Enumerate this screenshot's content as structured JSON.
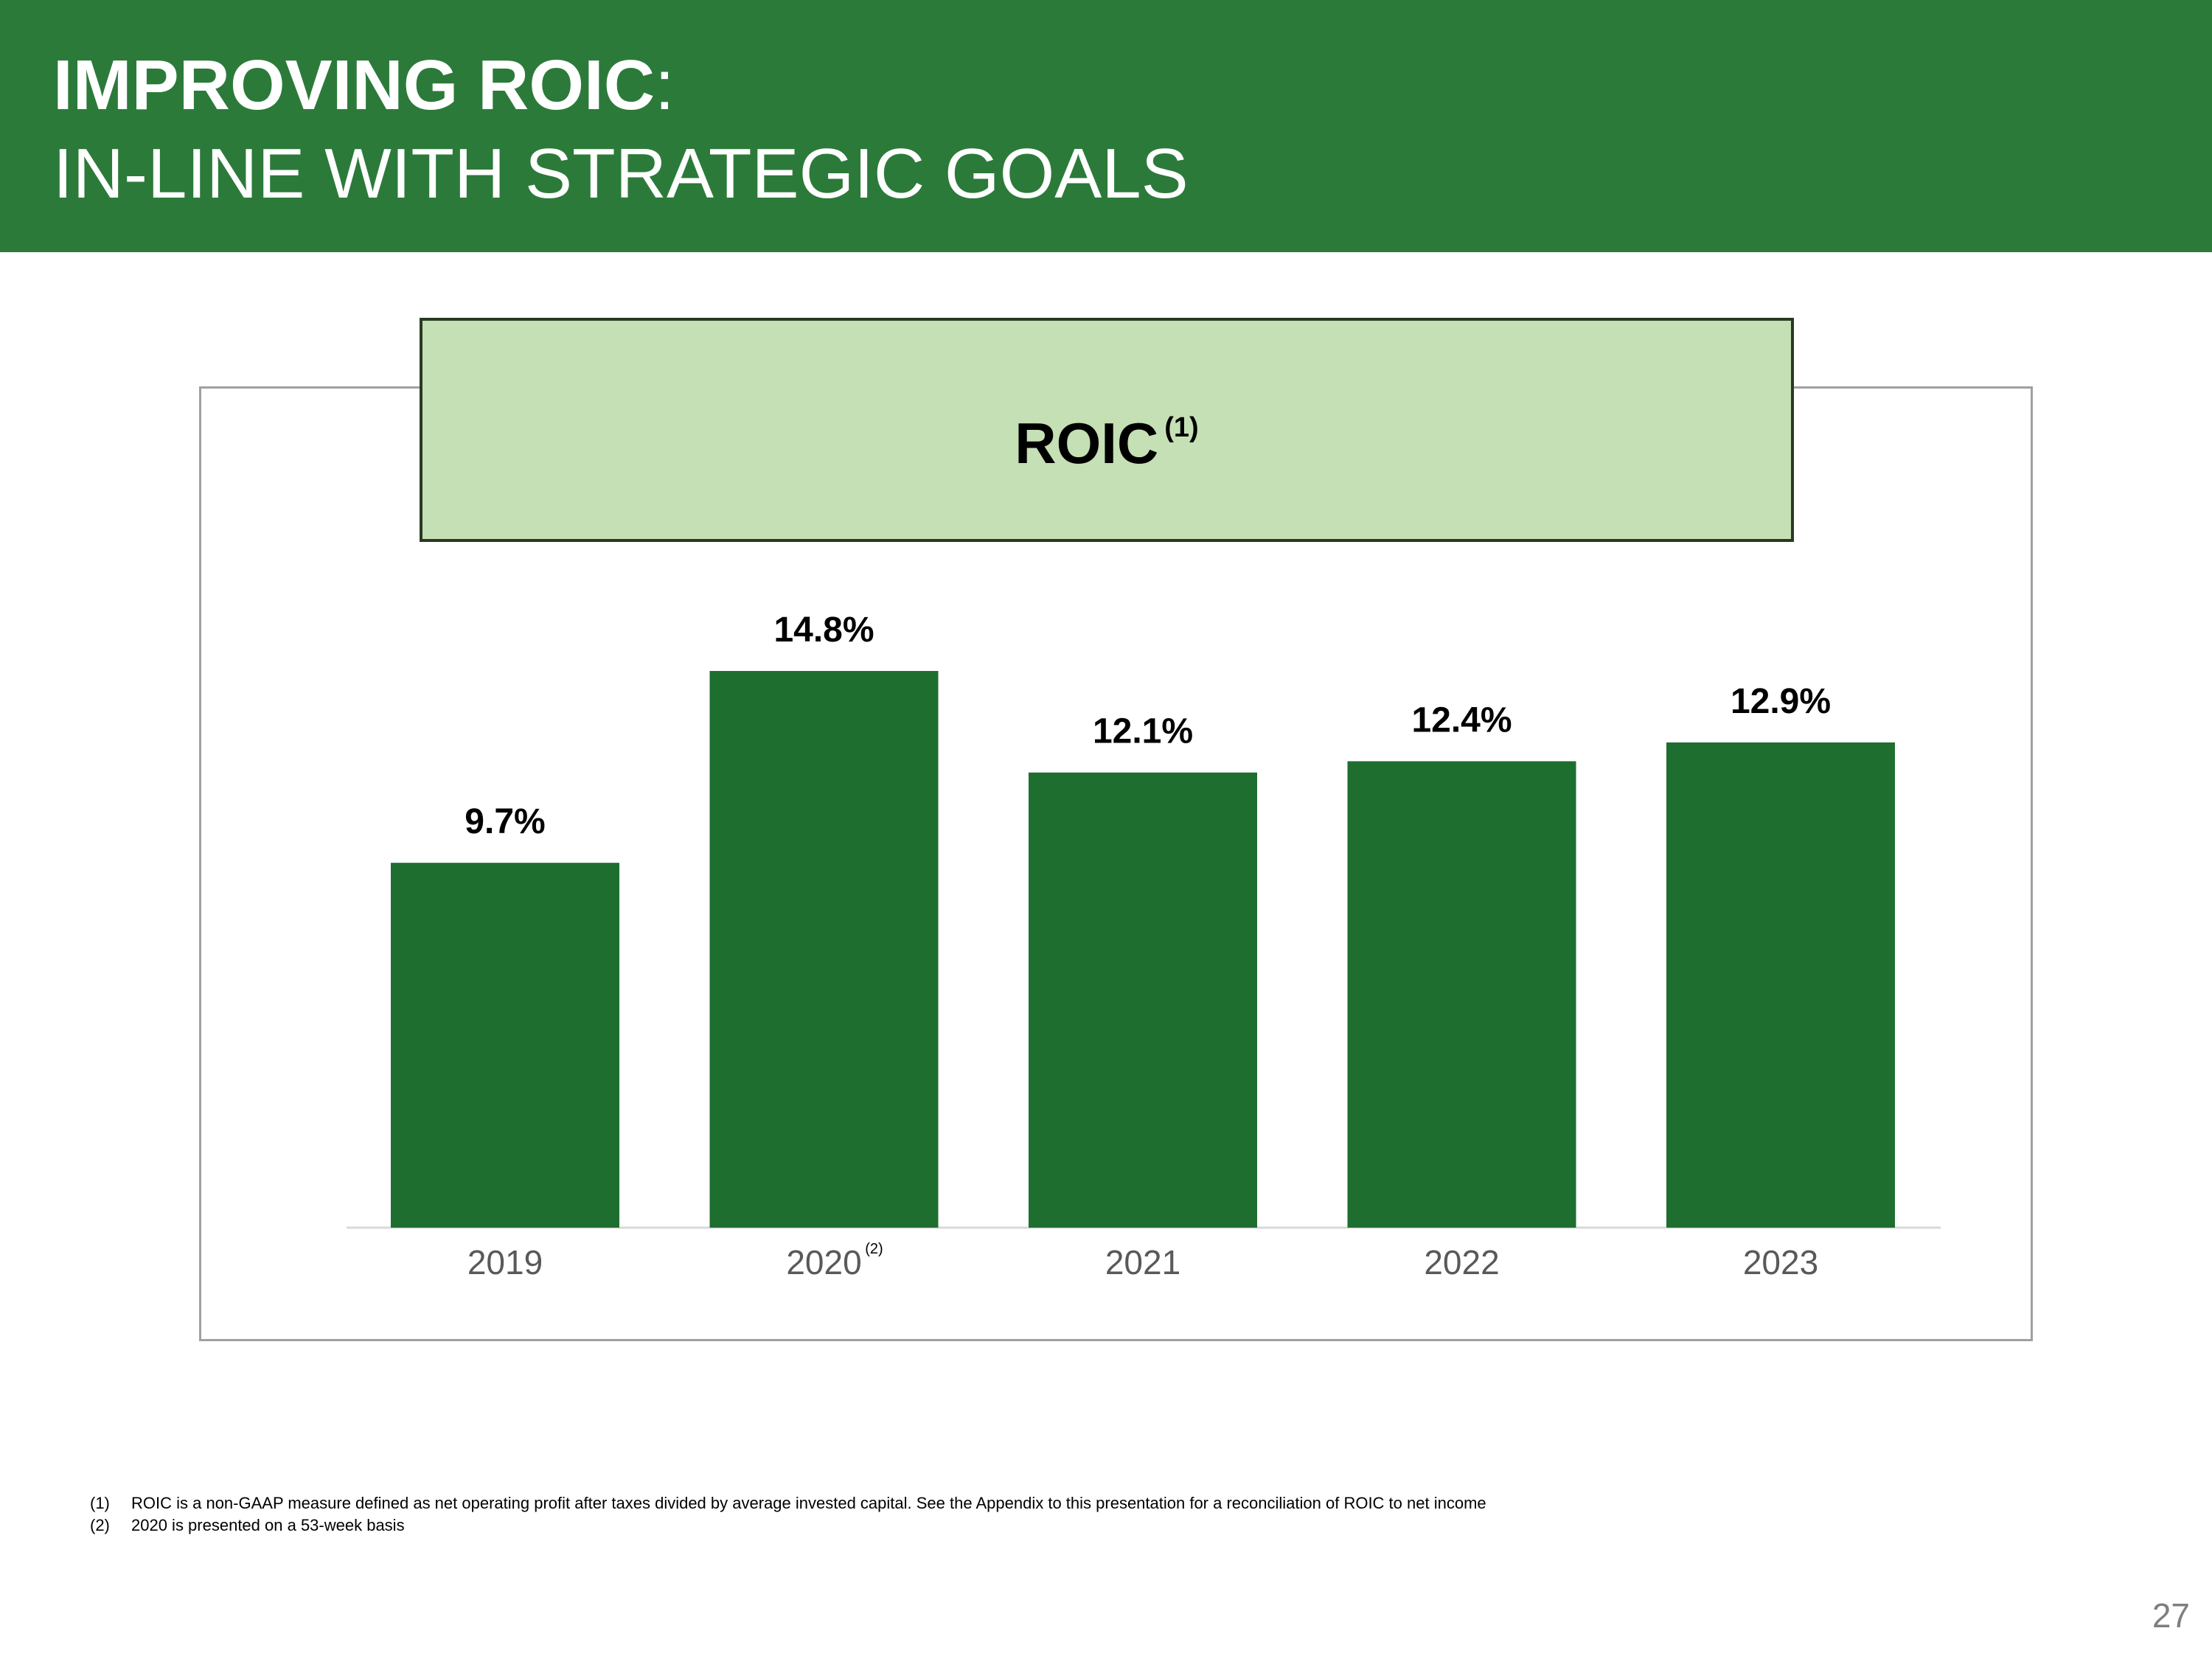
{
  "header": {
    "title_bold": "IMPROVING ROIC",
    "title_colon": ":",
    "title_line2": "IN-LINE WITH STRATEGIC GOALS"
  },
  "chart_box": {
    "title": "ROIC",
    "title_note": "(1)"
  },
  "chart_data": {
    "type": "bar",
    "title": "ROIC (1)",
    "categories": [
      "2019",
      "2020",
      "2021",
      "2022",
      "2023"
    ],
    "category_notes": [
      "",
      "(2)",
      "",
      "",
      ""
    ],
    "values": [
      9.7,
      14.8,
      12.1,
      12.4,
      12.9
    ],
    "value_labels": [
      "9.7%",
      "14.8%",
      "12.1%",
      "12.4%",
      "12.9%"
    ],
    "xlabel": "",
    "ylabel": "",
    "ylim": [
      0,
      14.8
    ],
    "bar_color": "#1e6e30",
    "grid": false
  },
  "footnotes": [
    {
      "num": "(1)",
      "text": "ROIC is a non-GAAP measure defined as net operating profit after taxes divided by average invested capital. See the Appendix to this presentation for a reconciliation of ROIC to net income"
    },
    {
      "num": "(2)",
      "text": "2020 is presented on a 53-week basis"
    }
  ],
  "page_number": "27",
  "colors": {
    "header_bg": "#2c7a3a",
    "title_box_bg": "#c5e0b4",
    "bar": "#1e6e30"
  }
}
